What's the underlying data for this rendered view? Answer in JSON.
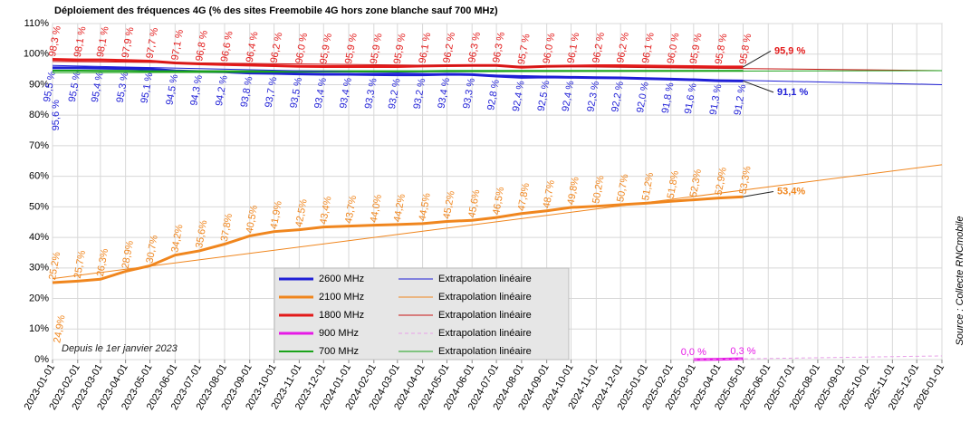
{
  "chart_data": {
    "type": "line",
    "title": "Déploiement des fréquences 4G (% des sites Freemobile 4G hors zone blanche sauf 700 MHz)",
    "source": "Source : Collecte RNCmobile",
    "annotations": [
      "95,6 %",
      "24,9%",
      "91,1 %",
      "95,9 %",
      "53,4%",
      "Depuis le 1er janvier 2023"
    ],
    "x": [
      "2023-01-01",
      "2023-02-01",
      "2023-03-01",
      "2023-04-01",
      "2023-05-01",
      "2023-06-01",
      "2023-07-01",
      "2023-08-01",
      "2023-09-01",
      "2023-10-01",
      "2023-11-01",
      "2023-12-01",
      "2024-01-01",
      "2024-02-01",
      "2024-03-01",
      "2024-04-01",
      "2024-05-01",
      "2024-06-01",
      "2024-07-01",
      "2024-08-01",
      "2024-09-01",
      "2024-10-01",
      "2024-11-01",
      "2024-12-01",
      "2025-01-01",
      "2025-02-01",
      "2025-03-01",
      "2025-04-01",
      "2025-05-01"
    ],
    "xlim": [
      "2023-01-01",
      "2026-01-01"
    ],
    "xticks": [
      "2023-01-01",
      "2023-02-01",
      "2023-03-01",
      "2023-04-01",
      "2023-05-01",
      "2023-06-01",
      "2023-07-01",
      "2023-08-01",
      "2023-09-01",
      "2023-10-01",
      "2023-11-01",
      "2023-12-01",
      "2024-01-01",
      "2024-02-01",
      "2024-03-01",
      "2024-04-01",
      "2024-05-01",
      "2024-06-01",
      "2024-07-01",
      "2024-08-01",
      "2024-09-01",
      "2024-10-01",
      "2024-11-01",
      "2024-12-01",
      "2025-01-01",
      "2025-02-01",
      "2025-03-01",
      "2025-04-01",
      "2025-05-01",
      "2025-06-01",
      "2025-07-01",
      "2025-08-01",
      "2025-09-01",
      "2025-10-01",
      "2025-11-01",
      "2025-12-01",
      "2026-01-01"
    ],
    "ylim": [
      0,
      110
    ],
    "yticks": [
      {
        "value": 0,
        "label": "0%"
      },
      {
        "value": 10,
        "label": "10%"
      },
      {
        "value": 20,
        "label": "20%"
      },
      {
        "value": 30,
        "label": "30%"
      },
      {
        "value": 40,
        "label": "40%"
      },
      {
        "value": 50,
        "label": "50%"
      },
      {
        "value": 60,
        "label": "60%"
      },
      {
        "value": 70,
        "label": "70%"
      },
      {
        "value": 80,
        "label": "80%"
      },
      {
        "value": 90,
        "label": "90%"
      },
      {
        "value": 100,
        "label": "100%"
      },
      {
        "value": 110,
        "label": "110%"
      }
    ],
    "grid": true,
    "series": [
      {
        "name": "2600 MHz",
        "color": "#1f1fd6",
        "width": 3,
        "values": [
          95.5,
          95.5,
          95.4,
          95.3,
          95.1,
          94.5,
          94.3,
          94.2,
          93.8,
          93.7,
          93.5,
          93.4,
          93.4,
          93.3,
          93.2,
          93.2,
          93.4,
          93.3,
          92.8,
          92.4,
          92.5,
          92.4,
          92.3,
          92.2,
          92.0,
          91.8,
          91.6,
          91.3,
          91.2
        ],
        "value_labels": [
          "95,5 %",
          "95,5 %",
          "95,4 %",
          "95,3 %",
          "95,1 %",
          "94,5 %",
          "94,3 %",
          "94,2 %",
          "93,8 %",
          "93,7 %",
          "93,5 %",
          "93,4 %",
          "93,4 %",
          "93,3 %",
          "93,2 %",
          "93,2 %",
          "93,4 %",
          "93,3 %",
          "92,8 %",
          "92,4 %",
          "92,5 %",
          "92,4 %",
          "92,3 %",
          "92,2 %",
          "92,0 %",
          "91,8 %",
          "91,6 %",
          "91,3 %",
          "91,2 %"
        ]
      },
      {
        "name": "2100 MHz",
        "color": "#f0861e",
        "width": 3,
        "values": [
          25.2,
          25.7,
          26.3,
          28.9,
          30.7,
          34.2,
          35.6,
          37.8,
          40.5,
          41.9,
          42.5,
          43.4,
          43.7,
          44.0,
          44.2,
          44.5,
          45.2,
          45.6,
          46.5,
          47.8,
          48.7,
          49.8,
          50.2,
          50.7,
          51.2,
          51.8,
          52.3,
          52.9,
          53.3
        ],
        "value_labels": [
          "25,2%",
          "25,7%",
          "26,3%",
          "28,9%",
          "30,7%",
          "34,2%",
          "35,6%",
          "37,8%",
          "40,5%",
          "41,9%",
          "42,5%",
          "43,4%",
          "43,7%",
          "44,0%",
          "44,2%",
          "44,5%",
          "45,2%",
          "45,6%",
          "46,5%",
          "47,8%",
          "48,7%",
          "49,8%",
          "50,2%",
          "50,7%",
          "51,2%",
          "51,8%",
          "52,3%",
          "52,9%",
          "53,3%"
        ]
      },
      {
        "name": "1800 MHz",
        "color": "#e31a1a",
        "width": 3,
        "values": [
          98.3,
          98.1,
          98.1,
          97.9,
          97.7,
          97.1,
          96.8,
          96.6,
          96.4,
          96.2,
          96.0,
          95.9,
          95.9,
          95.9,
          95.9,
          96.1,
          96.2,
          96.3,
          96.3,
          95.7,
          96.0,
          96.1,
          96.2,
          96.2,
          96.1,
          96.0,
          95.9,
          95.8,
          95.8
        ],
        "value_labels": [
          "98,3 %",
          "98,1 %",
          "98,1 %",
          "97,9 %",
          "97,7 %",
          "97,1 %",
          "96,8 %",
          "96,6 %",
          "96,4 %",
          "96,2 %",
          "96,0 %",
          "95,9 %",
          "95,9 %",
          "95,9 %",
          "95,9 %",
          "96,1 %",
          "96,2 %",
          "96,3 %",
          "96,3 %",
          "95,7 %",
          "96,0 %",
          "96,1 %",
          "96,2 %",
          "96,2 %",
          "96,1 %",
          "96,0 %",
          "95,9 %",
          "95,8 %",
          "95,8 %"
        ]
      },
      {
        "name": "900 MHz",
        "color": "#e619e6",
        "width": 3,
        "values": [
          null,
          null,
          null,
          null,
          null,
          null,
          null,
          null,
          null,
          null,
          null,
          null,
          null,
          null,
          null,
          null,
          null,
          null,
          null,
          null,
          null,
          null,
          null,
          null,
          null,
          null,
          0.0,
          0.1,
          0.3
        ],
        "value_labels": [
          null,
          null,
          null,
          null,
          null,
          null,
          null,
          null,
          null,
          null,
          null,
          null,
          null,
          null,
          null,
          null,
          null,
          null,
          null,
          null,
          null,
          null,
          null,
          null,
          null,
          null,
          "0,0 %",
          null,
          "0,3 %"
        ]
      },
      {
        "name": "700 MHz",
        "color": "#1aa31a",
        "width": 2,
        "values": [
          94.6,
          94.6,
          94.5,
          94.5,
          94.4,
          94.4,
          94.4,
          94.4,
          94.4,
          94.4,
          94.4,
          94.4,
          94.4,
          94.4,
          94.4,
          94.4,
          94.5,
          94.5,
          94.5,
          94.5,
          94.5,
          94.5,
          94.5,
          94.5,
          94.5,
          94.5,
          94.5,
          94.5,
          94.5
        ]
      },
      {
        "name": "Extrapolation linéaire",
        "color": "#1f1fd6",
        "width": 1,
        "x": [
          "2023-01-01",
          "2026-01-01"
        ],
        "values": [
          96.3,
          90.0
        ]
      },
      {
        "name": "Extrapolation linéaire",
        "color": "#f0861e",
        "width": 1,
        "x": [
          "2023-01-01",
          "2026-01-01"
        ],
        "values": [
          26.5,
          63.8
        ]
      },
      {
        "name": "Extrapolation linéaire",
        "color": "#c81414",
        "width": 1,
        "x": [
          "2023-01-01",
          "2026-01-01"
        ],
        "values": [
          97.6,
          94.6
        ]
      },
      {
        "name": "Extrapolation linéaire",
        "color": "#e8a0e8",
        "width": 1,
        "dashed": true,
        "x": [
          "2025-03-01",
          "2026-01-01"
        ],
        "values": [
          0.0,
          1.2
        ]
      },
      {
        "name": "Extrapolation linéaire",
        "color": "#1aa31a",
        "width": 1,
        "x": [
          "2023-01-01",
          "2026-01-01"
        ],
        "values": [
          93.9,
          94.6
        ]
      }
    ]
  }
}
